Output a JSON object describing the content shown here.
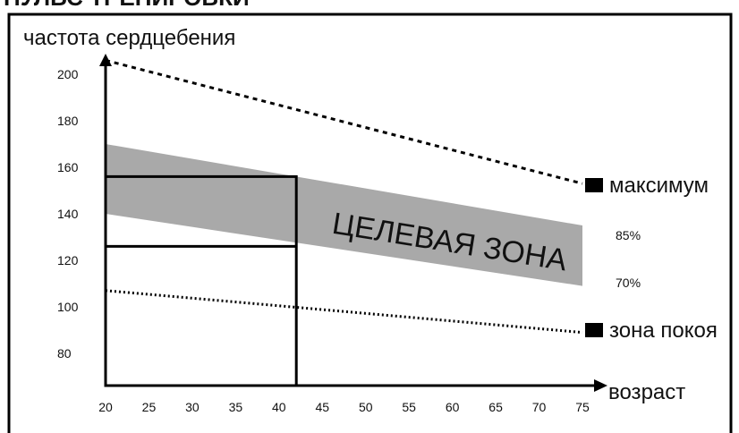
{
  "top_heading": "ПУЛЬС ТРЕНИРОВКИ",
  "chart_data": {
    "type": "line",
    "ylabel": "частота сердцебения",
    "xlabel": "возраст",
    "x_ticks": [
      20,
      25,
      30,
      35,
      40,
      45,
      50,
      55,
      60,
      65,
      70,
      75
    ],
    "y_ticks": [
      80,
      100,
      120,
      140,
      160,
      180,
      200
    ],
    "xlim": [
      20,
      77
    ],
    "ylim": [
      62,
      212
    ],
    "series": [
      {
        "name": "максимум",
        "style": "dashed",
        "x": [
          20,
          75
        ],
        "y": [
          206,
          153
        ]
      },
      {
        "name": "зона покоя",
        "style": "dotted",
        "x": [
          20,
          75
        ],
        "y": [
          107,
          89
        ]
      }
    ],
    "band": {
      "label": "ЦЕЛЕВАЯ ЗОНА",
      "x": [
        20,
        75
      ],
      "upper": [
        170,
        135
      ],
      "lower": [
        140,
        109
      ],
      "upper_label": "85%",
      "lower_label": "70%",
      "color": "#a9a9a9"
    },
    "guide_rect": {
      "x": [
        20,
        42
      ],
      "y_top": 156,
      "y_mid": 126
    },
    "legend": [
      "максимум",
      "зона покоя"
    ],
    "grid": false
  }
}
